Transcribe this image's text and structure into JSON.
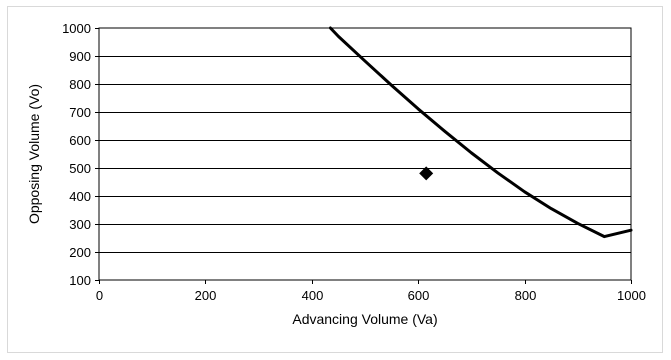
{
  "chart_data": {
    "type": "line",
    "title": "",
    "xlabel": "Advancing Volume (Va)",
    "ylabel": "Opposing Volume (Vo)",
    "xlim": [
      0,
      1000
    ],
    "ylim": [
      100,
      1000
    ],
    "xticks": [
      0,
      200,
      400,
      600,
      800,
      1000
    ],
    "yticks": [
      100,
      200,
      300,
      400,
      500,
      600,
      700,
      800,
      900,
      1000
    ],
    "grid": "horizontal",
    "legend": "none",
    "series": [
      {
        "type": "line",
        "color": "#000000",
        "x": [
          435,
          450,
          500,
          550,
          600,
          650,
          700,
          750,
          800,
          850,
          900,
          950,
          1000
        ],
        "y": [
          1000,
          970,
          882,
          795,
          711,
          631,
          554,
          482,
          415,
          355,
          302,
          255,
          278
        ]
      },
      {
        "type": "scatter",
        "marker": "diamond",
        "color": "#000000",
        "x": [
          615
        ],
        "y": [
          481
        ]
      }
    ]
  }
}
